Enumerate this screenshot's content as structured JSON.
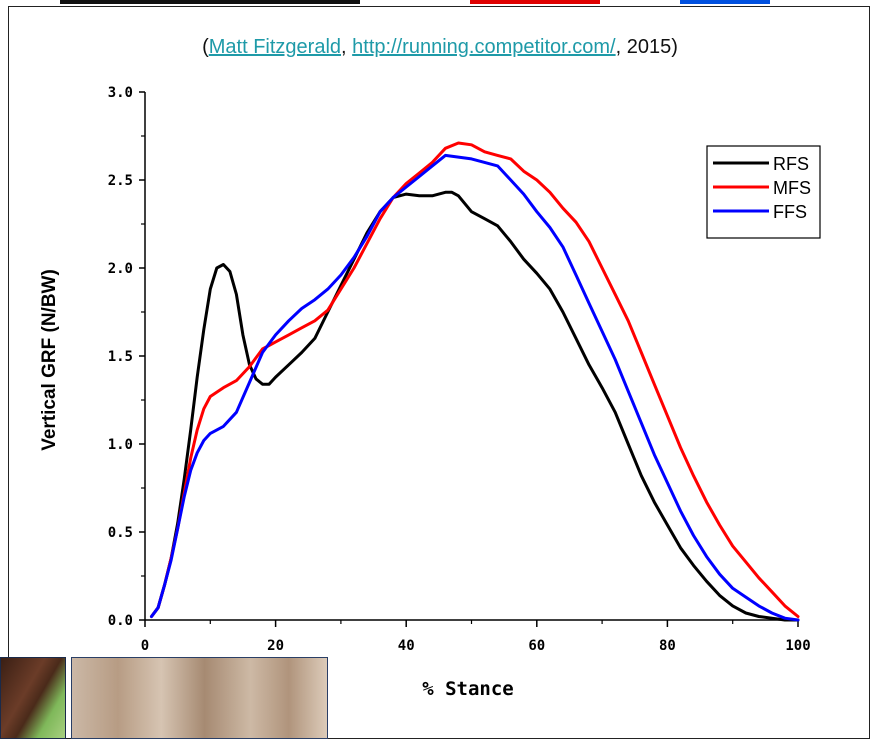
{
  "citation": {
    "open": "(",
    "author": "Matt Fitzgerald",
    "sep1": ", ",
    "url": "http://running.competitor.com/",
    "sep2": ", ",
    "year": "2015",
    "close": ")"
  },
  "colors": {
    "rfs": "#000000",
    "mfs": "#ff0000",
    "ffs": "#0000ff",
    "link": "#1e9aa8",
    "strip_red": "#e00000",
    "strip_blue": "#0050e0"
  },
  "chart_data": {
    "type": "line",
    "xlabel": "% Stance",
    "ylabel": "Vertical GRF (N/BW)",
    "xlim": [
      0,
      100
    ],
    "ylim": [
      0,
      3.0
    ],
    "xticks": [
      0,
      20,
      40,
      60,
      80,
      100
    ],
    "xtick_labels": [
      "0",
      "20",
      "40",
      "60",
      "80",
      "100"
    ],
    "yticks": [
      0,
      0.5,
      1.0,
      1.5,
      2.0,
      2.5,
      3.0
    ],
    "ytick_labels": [
      "0.0",
      "0.5",
      "1.0",
      "1.5",
      "2.0",
      "2.5",
      "3.0"
    ],
    "grid": false,
    "legend_position": "top-right",
    "series": [
      {
        "name": "RFS",
        "color": "#000000",
        "x": [
          1,
          2,
          3,
          4,
          5,
          6,
          7,
          8,
          9,
          10,
          11,
          12,
          13,
          14,
          15,
          16,
          17,
          18,
          19,
          20,
          22,
          24,
          26,
          28,
          30,
          32,
          34,
          36,
          38,
          40,
          42,
          44,
          46,
          47,
          48,
          50,
          52,
          54,
          56,
          58,
          60,
          62,
          64,
          66,
          68,
          70,
          72,
          74,
          76,
          78,
          80,
          82,
          84,
          86,
          88,
          90,
          92,
          94,
          96,
          98,
          100
        ],
        "y": [
          0.02,
          0.07,
          0.2,
          0.35,
          0.55,
          0.8,
          1.08,
          1.38,
          1.65,
          1.88,
          2.0,
          2.02,
          1.98,
          1.85,
          1.62,
          1.45,
          1.37,
          1.34,
          1.34,
          1.38,
          1.45,
          1.52,
          1.6,
          1.75,
          1.9,
          2.05,
          2.2,
          2.32,
          2.4,
          2.42,
          2.41,
          2.41,
          2.43,
          2.43,
          2.41,
          2.32,
          2.28,
          2.24,
          2.15,
          2.05,
          1.97,
          1.88,
          1.75,
          1.6,
          1.45,
          1.32,
          1.18,
          1.0,
          0.82,
          0.67,
          0.54,
          0.41,
          0.31,
          0.22,
          0.14,
          0.08,
          0.04,
          0.02,
          0.01,
          0.0,
          0.0
        ]
      },
      {
        "name": "MFS",
        "color": "#ff0000",
        "x": [
          1,
          2,
          3,
          4,
          5,
          6,
          7,
          8,
          9,
          10,
          12,
          14,
          16,
          18,
          20,
          22,
          24,
          26,
          28,
          30,
          32,
          34,
          36,
          38,
          40,
          42,
          44,
          46,
          48,
          50,
          52,
          54,
          56,
          58,
          60,
          62,
          64,
          66,
          68,
          70,
          72,
          74,
          76,
          78,
          80,
          82,
          84,
          86,
          88,
          90,
          92,
          94,
          96,
          98,
          100
        ],
        "y": [
          0.02,
          0.07,
          0.2,
          0.35,
          0.52,
          0.72,
          0.92,
          1.08,
          1.2,
          1.27,
          1.32,
          1.36,
          1.44,
          1.54,
          1.58,
          1.62,
          1.66,
          1.7,
          1.76,
          1.88,
          2.0,
          2.14,
          2.28,
          2.4,
          2.48,
          2.54,
          2.6,
          2.68,
          2.71,
          2.7,
          2.66,
          2.64,
          2.62,
          2.55,
          2.5,
          2.43,
          2.34,
          2.26,
          2.15,
          2.0,
          1.85,
          1.7,
          1.52,
          1.34,
          1.16,
          0.98,
          0.82,
          0.67,
          0.54,
          0.42,
          0.33,
          0.24,
          0.16,
          0.08,
          0.02
        ]
      },
      {
        "name": "FFS",
        "color": "#0000ff",
        "x": [
          1,
          2,
          3,
          4,
          5,
          6,
          7,
          8,
          9,
          10,
          12,
          14,
          16,
          18,
          20,
          22,
          24,
          26,
          28,
          30,
          32,
          34,
          36,
          38,
          40,
          42,
          44,
          46,
          48,
          50,
          52,
          54,
          56,
          58,
          60,
          62,
          64,
          66,
          68,
          70,
          72,
          74,
          76,
          78,
          80,
          82,
          84,
          86,
          88,
          90,
          92,
          94,
          96,
          98,
          100
        ],
        "y": [
          0.02,
          0.07,
          0.2,
          0.34,
          0.52,
          0.7,
          0.85,
          0.95,
          1.02,
          1.06,
          1.1,
          1.18,
          1.35,
          1.52,
          1.62,
          1.7,
          1.77,
          1.82,
          1.88,
          1.96,
          2.06,
          2.18,
          2.32,
          2.4,
          2.46,
          2.52,
          2.58,
          2.64,
          2.63,
          2.62,
          2.6,
          2.58,
          2.5,
          2.42,
          2.32,
          2.23,
          2.12,
          1.96,
          1.8,
          1.64,
          1.48,
          1.3,
          1.12,
          0.94,
          0.78,
          0.62,
          0.48,
          0.36,
          0.26,
          0.18,
          0.13,
          0.08,
          0.04,
          0.01,
          0.0
        ]
      }
    ]
  }
}
